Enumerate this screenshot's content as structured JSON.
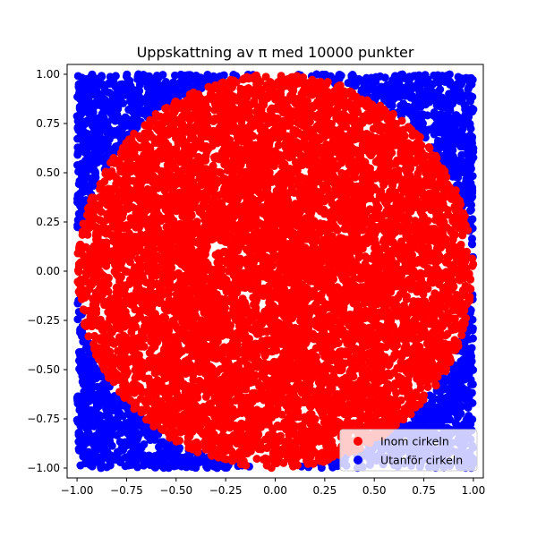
{
  "chart_data": {
    "type": "scatter",
    "title": "Uppskattning av π med 10000 punkter",
    "xlabel": "",
    "ylabel": "",
    "xlim": [
      -1.05,
      1.05
    ],
    "ylim": [
      -1.05,
      1.05
    ],
    "x_ticks": [
      "−1.00",
      "−0.75",
      "−0.50",
      "−0.25",
      "0.00",
      "0.25",
      "0.50",
      "0.75",
      "1.00"
    ],
    "y_ticks": [
      "1.00",
      "0.75",
      "0.50",
      "0.25",
      "0.00",
      "−0.25",
      "−0.50",
      "−0.75",
      "−1.00"
    ],
    "x_tick_values": [
      -1.0,
      -0.75,
      -0.5,
      -0.25,
      0.0,
      0.25,
      0.5,
      0.75,
      1.0
    ],
    "y_tick_values": [
      1.0,
      0.75,
      0.5,
      0.25,
      0.0,
      -0.25,
      -0.5,
      -0.75,
      -1.0
    ],
    "n_points": 10000,
    "distribution": "uniform random points in [-1, 1] × [-1, 1]; inside if x² + y² ≤ 1",
    "grid": false,
    "legend_position": "lower-right",
    "series": [
      {
        "name": "Inom cirkeln",
        "color": "#ff0000",
        "rule": "x^2 + y^2 <= 1"
      },
      {
        "name": "Utanför cirkeln",
        "color": "#0000ff",
        "rule": "x^2 + y^2 > 1"
      }
    ]
  }
}
